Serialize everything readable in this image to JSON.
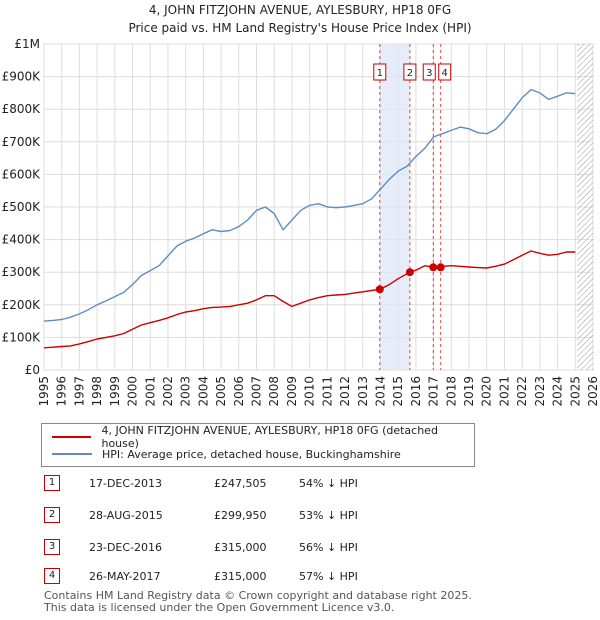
{
  "chart_data": {
    "type": "line",
    "title": "4, JOHN FITZJOHN AVENUE, AYLESBURY, HP18 0FG",
    "subtitle": "Price paid vs. HM Land Registry's House Price Index (HPI)",
    "xlim": [
      1995,
      2026
    ],
    "ylim": [
      0,
      1000000
    ],
    "x_ticks": [
      1995,
      1996,
      1997,
      1998,
      1999,
      2000,
      2001,
      2002,
      2003,
      2004,
      2005,
      2006,
      2007,
      2008,
      2009,
      2010,
      2011,
      2012,
      2013,
      2014,
      2015,
      2016,
      2017,
      2018,
      2019,
      2020,
      2021,
      2022,
      2023,
      2024,
      2025,
      2026
    ],
    "y_ticks": [
      {
        "value": 0,
        "label": "£0"
      },
      {
        "value": 100000,
        "label": "£100K"
      },
      {
        "value": 200000,
        "label": "£200K"
      },
      {
        "value": 300000,
        "label": "£300K"
      },
      {
        "value": 400000,
        "label": "£400K"
      },
      {
        "value": 500000,
        "label": "£500K"
      },
      {
        "value": 600000,
        "label": "£600K"
      },
      {
        "value": 700000,
        "label": "£700K"
      },
      {
        "value": 800000,
        "label": "£800K"
      },
      {
        "value": 900000,
        "label": "£900K"
      },
      {
        "value": 1000000,
        "label": "£1M"
      }
    ],
    "grid": true,
    "future_hatch_from": 2025.1,
    "shaded_ranges": [
      [
        2013.96,
        2015.66
      ]
    ],
    "series": [
      {
        "name": "4, JOHN FITZJOHN AVENUE, AYLESBURY, HP18 0FG (detached house)",
        "color": "#cc0000",
        "x": [
          1995.0,
          1995.5,
          1996.0,
          1996.5,
          1997.0,
          1997.5,
          1998.0,
          1998.5,
          1999.0,
          1999.5,
          2000.0,
          2000.5,
          2001.0,
          2001.5,
          2002.0,
          2002.5,
          2003.0,
          2003.5,
          2004.0,
          2004.5,
          2005.0,
          2005.5,
          2006.0,
          2006.5,
          2007.0,
          2007.5,
          2008.0,
          2008.5,
          2009.0,
          2009.5,
          2010.0,
          2010.5,
          2011.0,
          2011.5,
          2012.0,
          2012.5,
          2013.0,
          2013.5,
          2013.96,
          2014.5,
          2015.0,
          2015.66,
          2016.0,
          2016.5,
          2016.98,
          2017.4,
          2017.5,
          2018.0,
          2018.5,
          2019.0,
          2019.5,
          2020.0,
          2020.5,
          2021.0,
          2021.5,
          2022.0,
          2022.5,
          2023.0,
          2023.5,
          2024.0,
          2024.5,
          2025.0
        ],
        "values": [
          68000,
          70000,
          72000,
          74000,
          80000,
          87000,
          95000,
          100000,
          105000,
          112000,
          125000,
          138000,
          145000,
          152000,
          160000,
          170000,
          178000,
          182000,
          188000,
          192000,
          193000,
          195000,
          200000,
          205000,
          215000,
          228000,
          228000,
          210000,
          195000,
          205000,
          215000,
          222000,
          228000,
          230000,
          232000,
          236000,
          240000,
          244000,
          247505,
          262000,
          280000,
          299950,
          306000,
          320000,
          315000,
          315000,
          318000,
          320000,
          318000,
          316000,
          314000,
          313000,
          318000,
          325000,
          338000,
          352000,
          365000,
          358000,
          352000,
          355000,
          362000,
          362000
        ]
      },
      {
        "name": "HPI: Average price, detached house, Buckinghamshire",
        "color": "#5b8ec4",
        "x": [
          1995.0,
          1995.5,
          1996.0,
          1996.5,
          1997.0,
          1997.5,
          1998.0,
          1998.5,
          1999.0,
          1999.5,
          2000.0,
          2000.5,
          2001.0,
          2001.5,
          2002.0,
          2002.5,
          2003.0,
          2003.5,
          2004.0,
          2004.5,
          2005.0,
          2005.5,
          2006.0,
          2006.5,
          2007.0,
          2007.5,
          2008.0,
          2008.5,
          2009.0,
          2009.5,
          2010.0,
          2010.5,
          2011.0,
          2011.5,
          2012.0,
          2012.5,
          2013.0,
          2013.5,
          2014.0,
          2014.5,
          2015.0,
          2015.5,
          2016.0,
          2016.5,
          2017.0,
          2017.5,
          2018.0,
          2018.5,
          2019.0,
          2019.5,
          2020.0,
          2020.5,
          2021.0,
          2021.5,
          2022.0,
          2022.5,
          2023.0,
          2023.5,
          2024.0,
          2024.5,
          2025.0
        ],
        "values": [
          150000,
          152000,
          155000,
          162000,
          172000,
          185000,
          200000,
          212000,
          225000,
          238000,
          262000,
          290000,
          305000,
          320000,
          350000,
          380000,
          395000,
          405000,
          418000,
          430000,
          425000,
          428000,
          440000,
          460000,
          490000,
          500000,
          480000,
          430000,
          460000,
          490000,
          505000,
          510000,
          500000,
          498000,
          500000,
          505000,
          510000,
          525000,
          555000,
          585000,
          610000,
          625000,
          655000,
          680000,
          715000,
          725000,
          735000,
          745000,
          740000,
          728000,
          725000,
          738000,
          765000,
          800000,
          835000,
          860000,
          850000,
          830000,
          840000,
          850000,
          848000
        ]
      }
    ],
    "sales": [
      {
        "num": "1",
        "x": 2013.96,
        "value": 247505,
        "date": "17-DEC-2013",
        "price": "£247,505",
        "hpi": "54% ↓ HPI"
      },
      {
        "num": "2",
        "x": 2015.66,
        "value": 299950,
        "date": "28-AUG-2015",
        "price": "£299,950",
        "hpi": "53% ↓ HPI"
      },
      {
        "num": "3",
        "x": 2016.98,
        "value": 315000,
        "date": "23-DEC-2016",
        "price": "£315,000",
        "hpi": "56% ↓ HPI"
      },
      {
        "num": "4",
        "x": 2017.4,
        "value": 315000,
        "date": "26-MAY-2017",
        "price": "£315,000",
        "hpi": "57% ↓ HPI"
      }
    ]
  },
  "footer": {
    "line1": "Contains HM Land Registry data © Crown copyright and database right 2025.",
    "line2": "This data is licensed under the Open Government Licence v3.0."
  }
}
